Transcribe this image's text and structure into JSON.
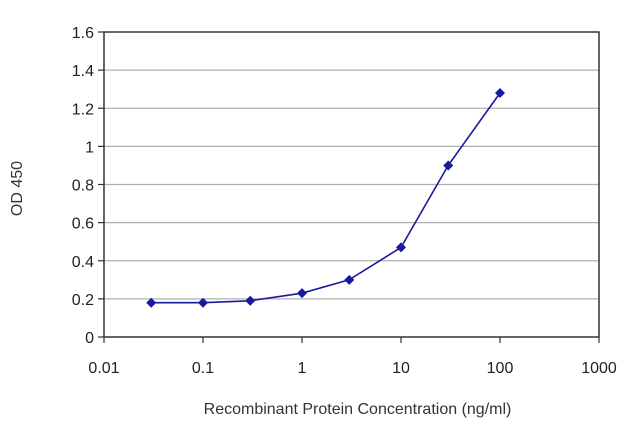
{
  "chart_data": {
    "type": "scatter",
    "title": "",
    "xlabel": "Recombinant Protein Concentration (ng/ml)",
    "ylabel": "OD 450",
    "x_scale": "log",
    "xlim": [
      0.01,
      1000
    ],
    "ylim": [
      0,
      1.6
    ],
    "x_ticks": [
      "0.01",
      "0.1",
      "1",
      "10",
      "100",
      "1000"
    ],
    "y_ticks": [
      "0",
      "0.2",
      "0.4",
      "0.6",
      "0.8",
      "1",
      "1.2",
      "1.4",
      "1.6"
    ],
    "grid": "horizontal",
    "legend": "none",
    "series": [
      {
        "x": [
          0.03,
          0.1,
          0.3,
          1,
          3,
          10,
          30,
          100
        ],
        "y": [
          0.18,
          0.18,
          0.19,
          0.23,
          0.3,
          0.47,
          0.9,
          1.28
        ]
      }
    ],
    "colors": {
      "series": "#1a1a9e",
      "grid": "#b0b0b0",
      "axis": "#333333"
    }
  }
}
